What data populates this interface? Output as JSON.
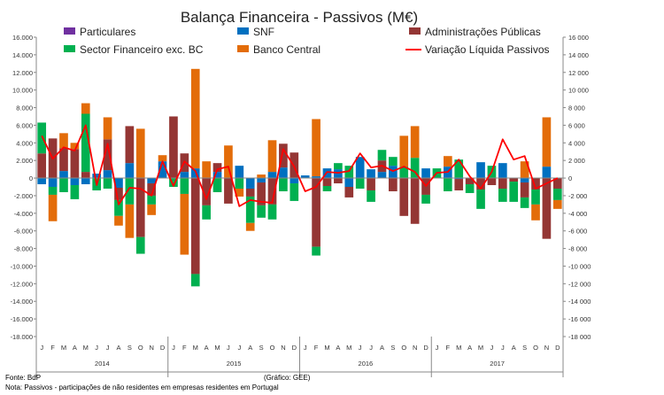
{
  "chart_data": {
    "type": "bar",
    "stacked": true,
    "title": "Balança Financeira - Passivos (M€)",
    "ylim": [
      -18000,
      16000
    ],
    "y_ticks": [
      -18000,
      -16000,
      -14000,
      -12000,
      -10000,
      -8000,
      -6000,
      -4000,
      -2000,
      0,
      2000,
      4000,
      6000,
      8000,
      10000,
      12000,
      14000,
      16000
    ],
    "y_tick_labels": [
      "-18.000",
      "-16.000",
      "-14.000",
      "-12.000",
      "-10.000",
      "-8.000",
      "-6.000",
      "-4.000",
      "-2.000",
      "0",
      "2.000",
      "4.000",
      "6.000",
      "8.000",
      "10.000",
      "12.000",
      "14.000",
      "16.000"
    ],
    "y_tick_labels_right": [
      "-18 000",
      "-16 000",
      "-14 000",
      "-12 000",
      "-10 000",
      "-8 000",
      "-6 000",
      "-4 000",
      "-2 000",
      "0",
      "2 000",
      "4 000",
      "6 000",
      "8 000",
      "10 000",
      "12 000",
      "14 000",
      "16 000"
    ],
    "categories": [
      "J",
      "F",
      "M",
      "A",
      "M",
      "J",
      "J",
      "A",
      "S",
      "O",
      "N",
      "D",
      "J",
      "F",
      "M",
      "A",
      "M",
      "J",
      "J",
      "A",
      "S",
      "O",
      "N",
      "D",
      "J",
      "F",
      "M",
      "A",
      "M",
      "J",
      "J",
      "A",
      "S",
      "O",
      "N",
      "D",
      "J",
      "F",
      "M",
      "A",
      "M",
      "J",
      "J",
      "A",
      "S",
      "O",
      "N",
      "D"
    ],
    "years": [
      "2014",
      "2015",
      "2016",
      "2017"
    ],
    "legend": [
      {
        "name": "Particulares",
        "color": "#7030a0"
      },
      {
        "name": "SNF",
        "color": "#0070c0"
      },
      {
        "name": "Administrações Públicas",
        "color": "#943634"
      },
      {
        "name": "Sector Financeiro exc. BC",
        "color": "#00b050"
      },
      {
        "name": "Banco Central",
        "color": "#e36c09"
      },
      {
        "name": "Variação Líquida Passivos",
        "color": "#ff0000"
      }
    ],
    "series": [
      {
        "name": "Particulares",
        "color": "#7030a0",
        "values": [
          0,
          0,
          0,
          0,
          0,
          0,
          0,
          0,
          0,
          0,
          0,
          0,
          0,
          0,
          0,
          0,
          0,
          0,
          0,
          0,
          0,
          0,
          0,
          0,
          0,
          0,
          0,
          0,
          0,
          0,
          0,
          0,
          0,
          0,
          0,
          0,
          0,
          0,
          0,
          0,
          0,
          0,
          0,
          0,
          0,
          0,
          0,
          0
        ]
      },
      {
        "name": "SNF",
        "color": "#0070c0",
        "values": [
          -700,
          -1000,
          800,
          -800,
          -700,
          500,
          900,
          -1100,
          1700,
          0,
          -600,
          1900,
          0,
          700,
          1100,
          0,
          700,
          0,
          1400,
          -1200,
          -500,
          700,
          1200,
          -600,
          300,
          200,
          1100,
          1000,
          -1000,
          2400,
          1000,
          700,
          1400,
          0,
          0,
          1100,
          0,
          1300,
          -100,
          0,
          1800,
          0,
          1700,
          0,
          -500,
          0,
          1300,
          0
        ]
      },
      {
        "name": "Administrações Públicas",
        "color": "#943634",
        "values": [
          2800,
          4500,
          2600,
          3300,
          700,
          0,
          3500,
          -1400,
          4200,
          -6700,
          -1400,
          0,
          7000,
          2100,
          -10900,
          -3100,
          1000,
          -2900,
          0,
          -900,
          -2600,
          -3000,
          2700,
          2900,
          0,
          -7800,
          -900,
          -600,
          -1200,
          0,
          -1400,
          1300,
          -1500,
          -4300,
          -5200,
          -1900,
          0,
          0,
          -1300,
          -700,
          -1300,
          -800,
          -1200,
          -400,
          -1700,
          -1300,
          -6900,
          -1200
        ]
      },
      {
        "name": "Sector Financeiro exc. BC",
        "color": "#00b050",
        "values": [
          3500,
          -900,
          -1600,
          -1600,
          6600,
          -1400,
          -1200,
          -1800,
          -3000,
          -1900,
          -1000,
          0,
          -1000,
          -1800,
          -1400,
          -1600,
          -1600,
          0,
          -1200,
          -3000,
          -1400,
          -1700,
          -1500,
          -2000,
          0,
          -1000,
          -600,
          700,
          1400,
          -1200,
          -1300,
          1200,
          1000,
          1300,
          2300,
          -1000,
          1100,
          -1500,
          2100,
          -1000,
          -2200,
          1400,
          -1500,
          -2300,
          -1200,
          -1700,
          0,
          -1300
        ]
      },
      {
        "name": "Banco Central",
        "color": "#e36c09",
        "values": [
          0,
          -3000,
          1700,
          700,
          1200,
          0,
          2500,
          -1100,
          -3800,
          5600,
          -1200,
          700,
          0,
          -6900,
          11300,
          1900,
          0,
          3700,
          -900,
          -900,
          400,
          3600,
          0,
          0,
          0,
          6500,
          0,
          0,
          0,
          0,
          0,
          0,
          0,
          3500,
          3600,
          0,
          0,
          1200,
          0,
          0,
          0,
          0,
          0,
          0,
          1900,
          -1800,
          5600,
          -1000
        ]
      },
      {
        "name": "Variação Líquida Passivos",
        "color": "#ff0000",
        "type": "line",
        "values": [
          4800,
          2200,
          3500,
          3100,
          6000,
          -800,
          3900,
          -3000,
          -1100,
          -1200,
          -2000,
          1900,
          -900,
          1900,
          800,
          -2400,
          1000,
          1300,
          -3200,
          -2500,
          -2700,
          -2800,
          3300,
          1300,
          -1500,
          -1000,
          700,
          600,
          800,
          2800,
          1200,
          1400,
          800,
          1300,
          700,
          -900,
          600,
          700,
          2100,
          200,
          -1200,
          700,
          4400,
          2100,
          2500,
          -1200,
          -600,
          0
        ]
      }
    ]
  },
  "footer": {
    "source": "Fonte: BdP",
    "credit": "(Gráfico: GEE)",
    "note": "Nota: Passivos - participações de não residentes em empresas residentes em Portugal"
  }
}
